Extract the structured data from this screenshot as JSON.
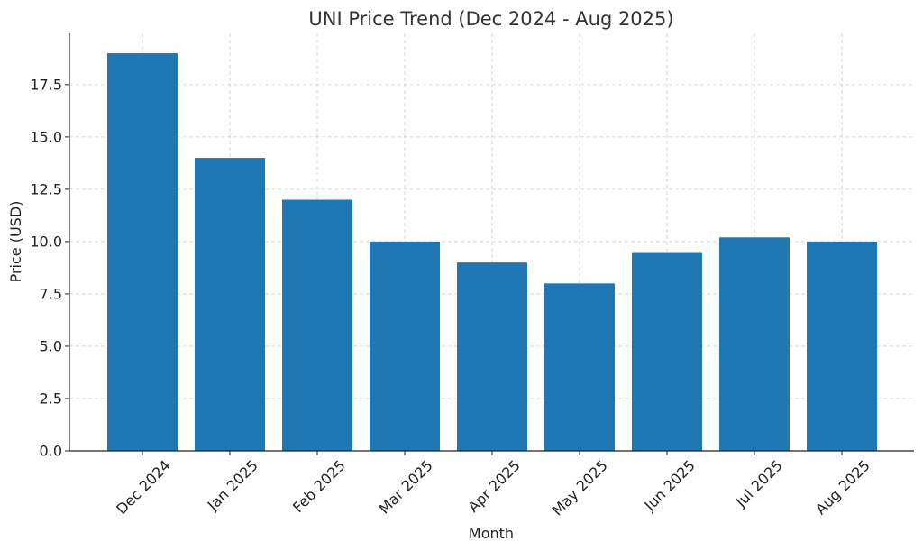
{
  "chart_data": {
    "type": "bar",
    "title": "UNI Price Trend (Dec 2024 - Aug 2025)",
    "xlabel": "Month",
    "ylabel": "Price (USD)",
    "categories": [
      "Dec 2024",
      "Jan 2025",
      "Feb 2025",
      "Mar 2025",
      "Apr 2025",
      "May 2025",
      "Jun 2025",
      "Jul 2025",
      "Aug 2025"
    ],
    "values": [
      19.0,
      14.0,
      12.0,
      10.0,
      9.0,
      8.0,
      9.5,
      10.2,
      10.0
    ],
    "ylim": [
      0,
      19.95
    ],
    "yticks": [
      "0.0",
      "2.5",
      "5.0",
      "7.5",
      "10.0",
      "12.5",
      "15.0",
      "17.5"
    ],
    "ytick_values": [
      0,
      2.5,
      5,
      7.5,
      10,
      12.5,
      15,
      17.5
    ],
    "grid": true,
    "bar_color": "#1f77b4"
  }
}
